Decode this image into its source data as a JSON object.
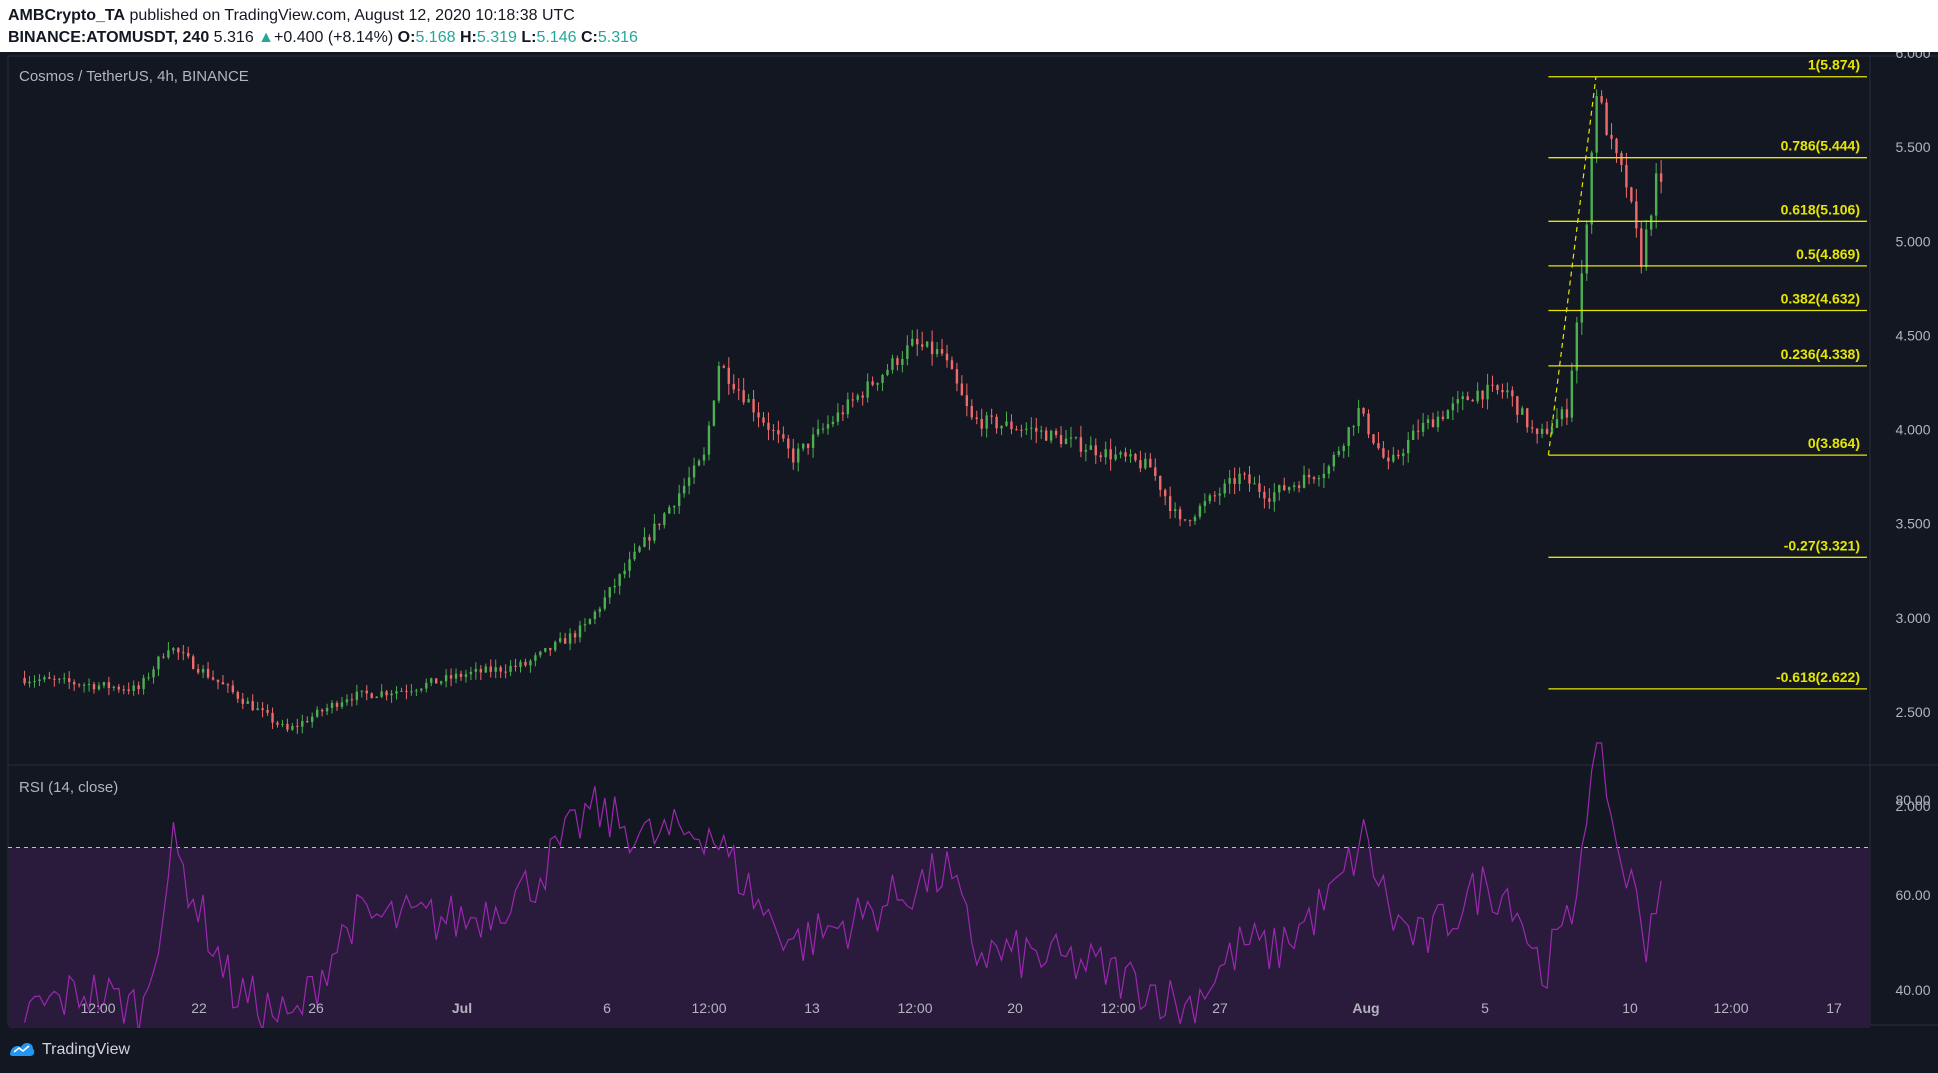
{
  "header": {
    "publisher": "AMBCrypto_TA",
    "published_text": "published on TradingView.com, August 12, 2020 10:18:38 UTC",
    "symbol": "BINANCE:ATOMUSDT, 240",
    "last": "5.316",
    "change": "+0.400 (+8.14%)",
    "o_label": "O:",
    "o": "5.168",
    "h_label": "H:",
    "h": "5.319",
    "l_label": "L:",
    "l": "5.146",
    "c_label": "C:",
    "c": "5.316"
  },
  "footer": {
    "brand": "TradingView"
  },
  "colors": {
    "up": "#26a69a",
    "candle_up": "#4caf50",
    "candle_down": "#ef6b6b",
    "fib": "#e6e600",
    "rsi_line": "#9c27b0",
    "rsi_band": "#2a1b3d"
  },
  "chart_data": [
    {
      "type": "candlestick",
      "title": "Cosmos / TetherUS, 4h, BINANCE",
      "ylim": [
        1.95,
        6.3
      ],
      "y_ticks": [
        "6.000",
        "5.500",
        "5.000",
        "4.500",
        "4.000",
        "3.500",
        "3.000",
        "2.500",
        "2.000"
      ],
      "x_ticks": [
        "12:00",
        "22",
        "26",
        "Jul",
        "6",
        "12:00",
        "13",
        "12:00",
        "20",
        "12:00",
        "27",
        "Aug",
        "5",
        "10",
        "12:00",
        "17"
      ],
      "key_points": [
        {
          "t": "Jun 18",
          "price": 2.68
        },
        {
          "t": "Jun 22",
          "price": 2.62
        },
        {
          "t": "Jun 23",
          "price": 2.85
        },
        {
          "t": "Jun 25",
          "price": 2.62
        },
        {
          "t": "Jun 27",
          "price": 2.4
        },
        {
          "t": "Jun 29",
          "price": 2.58
        },
        {
          "t": "Jul 1",
          "price": 2.62
        },
        {
          "t": "Jul 3",
          "price": 2.7
        },
        {
          "t": "Jul 5",
          "price": 2.75
        },
        {
          "t": "Jul 7",
          "price": 2.95
        },
        {
          "t": "Jul 9",
          "price": 3.4
        },
        {
          "t": "Jul 11",
          "price": 3.85
        },
        {
          "t": "Jul 11 12:00",
          "price": 4.35
        },
        {
          "t": "Jul 13",
          "price": 4.05
        },
        {
          "t": "Jul 14",
          "price": 3.85
        },
        {
          "t": "Jul 16",
          "price": 4.15
        },
        {
          "t": "Jul 18",
          "price": 4.45
        },
        {
          "t": "Jul 19",
          "price": 4.4
        },
        {
          "t": "Jul 20",
          "price": 4.05
        },
        {
          "t": "Jul 22",
          "price": 4.0
        },
        {
          "t": "Jul 24",
          "price": 3.9
        },
        {
          "t": "Jul 26",
          "price": 3.8
        },
        {
          "t": "Jul 27",
          "price": 3.5
        },
        {
          "t": "Jul 29",
          "price": 3.75
        },
        {
          "t": "Jul 30",
          "price": 3.65
        },
        {
          "t": "Aug 1",
          "price": 3.8
        },
        {
          "t": "Aug 2",
          "price": 4.1
        },
        {
          "t": "Aug 3",
          "price": 3.8
        },
        {
          "t": "Aug 4",
          "price": 4.0
        },
        {
          "t": "Aug 6",
          "price": 4.2
        },
        {
          "t": "Aug 7",
          "price": 4.2
        },
        {
          "t": "Aug 8",
          "price": 3.95
        },
        {
          "t": "Aug 9",
          "price": 4.1
        },
        {
          "t": "Aug 9 12:00",
          "price": 4.8
        },
        {
          "t": "Aug 10",
          "price": 5.8
        },
        {
          "t": "Aug 10 12:00",
          "price": 5.5
        },
        {
          "t": "Aug 11",
          "price": 5.3
        },
        {
          "t": "Aug 11 12:00",
          "price": 4.9
        },
        {
          "t": "Aug 12",
          "price": 5.316
        }
      ],
      "fib_levels": [
        {
          "label": "1(5.874)",
          "value": 5.874
        },
        {
          "label": "0.786(5.444)",
          "value": 5.444
        },
        {
          "label": "0.618(5.106)",
          "value": 5.106
        },
        {
          "label": "0.5(4.869)",
          "value": 4.869
        },
        {
          "label": "0.382(4.632)",
          "value": 4.632
        },
        {
          "label": "0.236(4.338)",
          "value": 4.338
        },
        {
          "label": "0(3.864)",
          "value": 3.864
        },
        {
          "label": "-0.27(3.321)",
          "value": 3.321
        },
        {
          "label": "-0.618(2.622)",
          "value": 2.622
        }
      ],
      "fib_from": "Aug 8",
      "fib_to": "Aug 12 12:00"
    },
    {
      "type": "line",
      "title": "RSI (14, close)",
      "ylim": [
        24,
        94
      ],
      "y_ticks": [
        "80.00",
        "60.00",
        "40.00"
      ],
      "bands": [
        70,
        30
      ],
      "key_points": [
        {
          "t": "Jun 18",
          "rsi": 35
        },
        {
          "t": "Jun 20",
          "rsi": 40
        },
        {
          "t": "Jun 22",
          "rsi": 36
        },
        {
          "t": "Jun 23",
          "rsi": 70
        },
        {
          "t": "Jun 25",
          "rsi": 40
        },
        {
          "t": "Jun 27",
          "rsi": 33
        },
        {
          "t": "Jun 29",
          "rsi": 55
        },
        {
          "t": "Jul 1",
          "rsi": 55
        },
        {
          "t": "Jul 3",
          "rsi": 55
        },
        {
          "t": "Jul 5",
          "rsi": 62
        },
        {
          "t": "Jul 7",
          "rsi": 78
        },
        {
          "t": "Jul 9",
          "rsi": 72
        },
        {
          "t": "Jul 11",
          "rsi": 74
        },
        {
          "t": "Jul 13",
          "rsi": 55
        },
        {
          "t": "Jul 14",
          "rsi": 50
        },
        {
          "t": "Jul 16",
          "rsi": 55
        },
        {
          "t": "Jul 18",
          "rsi": 62
        },
        {
          "t": "Jul 19",
          "rsi": 65
        },
        {
          "t": "Jul 20",
          "rsi": 48
        },
        {
          "t": "Jul 22",
          "rsi": 47
        },
        {
          "t": "Jul 24",
          "rsi": 45
        },
        {
          "t": "Jul 26",
          "rsi": 40
        },
        {
          "t": "Jul 27",
          "rsi": 36
        },
        {
          "t": "Jul 29",
          "rsi": 50
        },
        {
          "t": "Jul 30",
          "rsi": 48
        },
        {
          "t": "Aug 1",
          "rsi": 60
        },
        {
          "t": "Aug 2",
          "rsi": 72
        },
        {
          "t": "Aug 3",
          "rsi": 55
        },
        {
          "t": "Aug 4",
          "rsi": 50
        },
        {
          "t": "Aug 6",
          "rsi": 62
        },
        {
          "t": "Aug 7",
          "rsi": 60
        },
        {
          "t": "Aug 8",
          "rsi": 44
        },
        {
          "t": "Aug 9",
          "rsi": 55
        },
        {
          "t": "Aug 9 12:00",
          "rsi": 80
        },
        {
          "t": "Aug 10",
          "rsi": 91
        },
        {
          "t": "Aug 10 12:00",
          "rsi": 70
        },
        {
          "t": "Aug 11",
          "rsi": 62
        },
        {
          "t": "Aug 11 12:00",
          "rsi": 51
        },
        {
          "t": "Aug 12",
          "rsi": 63
        }
      ]
    }
  ]
}
